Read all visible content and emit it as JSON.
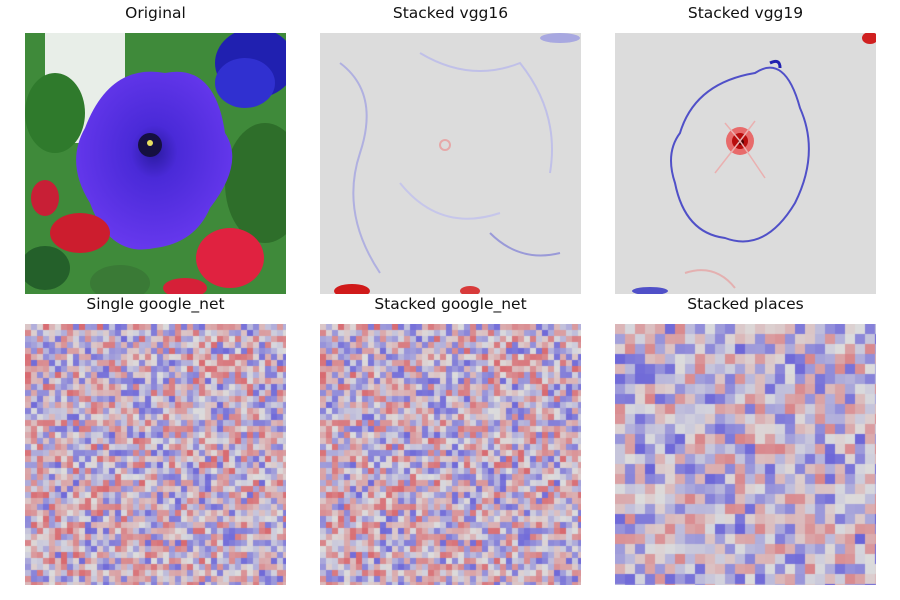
{
  "figure": {
    "panels": [
      {
        "title": "Original",
        "image": "photo of a purple petunia flower with red flowers and green leaves"
      },
      {
        "title": "Stacked vgg16",
        "image": "saliency map, mostly gray with faint blue outlines and red spots at bottom"
      },
      {
        "title": "Stacked vgg19",
        "image": "saliency map with blue flower outline and red center"
      },
      {
        "title": "Single google_net",
        "image": "noisy red/blue checkerboard saliency map"
      },
      {
        "title": "Stacked google_net",
        "image": "noisy red/blue checkerboard saliency map"
      },
      {
        "title": "Stacked places",
        "image": "blocky saliency map mostly blue patches"
      }
    ]
  },
  "colors": {
    "neutral": "#dcdcdc",
    "positive": "#d61f2a",
    "negative": "#2a2ad6",
    "petal": "#5a2ee6",
    "petal_dark": "#2a1aa0",
    "leaf": "#3f8a3a",
    "red_flower": "#d8203a"
  }
}
